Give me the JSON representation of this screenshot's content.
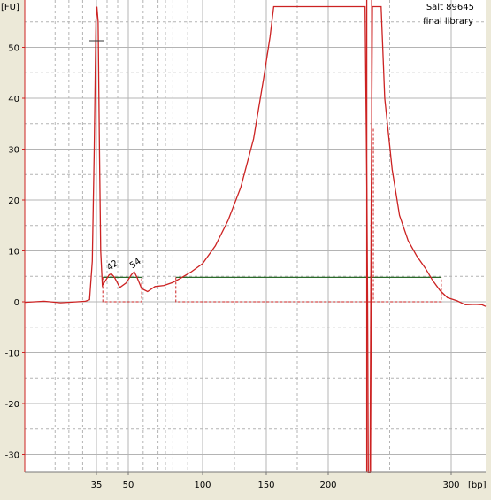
{
  "chart_data": {
    "type": "line",
    "title": "",
    "annotation_lines": [
      "Salt 89645",
      "final library"
    ],
    "y_unit": "[FU]",
    "x_unit": "[bp]",
    "x_ticks": [
      {
        "label": "35",
        "bp": 35
      },
      {
        "label": "50",
        "bp": 50
      },
      {
        "label": "100",
        "bp": 100
      },
      {
        "label": "150",
        "bp": 150
      },
      {
        "label": "200",
        "bp": 200
      },
      {
        "label": "300",
        "bp": 300
      }
    ],
    "y_ticks": [
      -30,
      -20,
      -10,
      0,
      10,
      20,
      30,
      40,
      50
    ],
    "ylim": [
      -33.5,
      58
    ],
    "grid": true,
    "peak_labels": [
      {
        "label": "42",
        "bp": 42,
        "fu": 5.5
      },
      {
        "label": "54",
        "bp": 54,
        "fu": 5.9
      }
    ],
    "colors": {
      "trace": "#cc2222",
      "grid": "#b4b4b4",
      "region_line": "#2a6b2a",
      "background": "#ffffff",
      "axis": "#cc2222"
    },
    "series": [
      {
        "name": "",
        "points_bp_fu": [
          [
            9,
            -0.1
          ],
          [
            16,
            0.1
          ],
          [
            22,
            -0.2
          ],
          [
            28,
            0.0
          ],
          [
            31,
            0.1
          ],
          [
            32.5,
            0.4
          ],
          [
            33.5,
            8
          ],
          [
            34.2,
            30
          ],
          [
            34.8,
            55
          ],
          [
            35.2,
            62
          ],
          [
            35.8,
            55
          ],
          [
            36.4,
            30
          ],
          [
            37,
            10
          ],
          [
            37.8,
            3.2
          ],
          [
            39,
            4.0
          ],
          [
            41,
            5.3
          ],
          [
            42,
            5.5
          ],
          [
            43.5,
            4.8
          ],
          [
            46,
            2.8
          ],
          [
            49,
            3.7
          ],
          [
            52,
            5.3
          ],
          [
            54,
            5.9
          ],
          [
            56,
            4.7
          ],
          [
            59,
            2.6
          ],
          [
            63,
            2.0
          ],
          [
            68,
            3.0
          ],
          [
            74,
            3.2
          ],
          [
            80,
            3.8
          ],
          [
            85,
            4.6
          ],
          [
            92,
            5.8
          ],
          [
            100,
            7.5
          ],
          [
            110,
            11
          ],
          [
            120,
            16
          ],
          [
            130,
            22.5
          ],
          [
            140,
            32
          ],
          [
            148,
            44
          ],
          [
            153,
            52
          ],
          [
            156,
            58
          ],
          [
            230,
            58
          ],
          [
            231.5,
            20
          ],
          [
            232,
            0.5
          ],
          [
            232.6,
            -33.5
          ],
          [
            234,
            -33.5
          ],
          [
            235,
            20
          ],
          [
            236,
            58
          ],
          [
            243,
            58
          ],
          [
            246,
            40
          ],
          [
            252,
            26
          ],
          [
            258,
            17
          ],
          [
            265,
            12
          ],
          [
            272,
            9
          ],
          [
            279,
            6.6
          ],
          [
            285,
            4.2
          ],
          [
            291,
            2.2
          ],
          [
            297,
            0.8
          ],
          [
            305,
            0.2
          ],
          [
            312,
            -0.6
          ],
          [
            320,
            -0.5
          ],
          [
            326,
            -0.6
          ],
          [
            329,
            -0.9
          ]
        ]
      }
    ],
    "regions": [
      {
        "name": "",
        "start_bp": 38,
        "end_bp": 59,
        "level_fu": 4.8
      },
      {
        "name": "",
        "start_bp": 82,
        "end_bp": 292,
        "level_fu": 4.8
      }
    ],
    "reference_marker": {
      "bp": 35,
      "fu": 51.3
    },
    "vertical_markers_bp": [
      231,
      235
    ]
  }
}
